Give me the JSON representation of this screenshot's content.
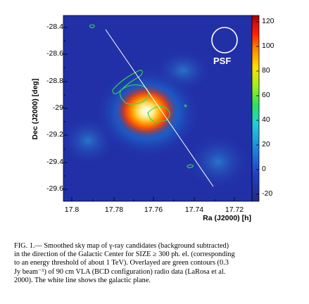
{
  "figure": {
    "ylabel": "Dec (J2000) [deg]",
    "xlabel": "Ra (J2000) [h]",
    "psf_label": "PSF",
    "yticks": [
      "-28.4",
      "-28.6",
      "-28.8",
      "-29",
      "-29.2",
      "-29.4",
      "-29.6"
    ],
    "xticks": [
      "17.8",
      "17.78",
      "17.76",
      "17.74",
      "17.72"
    ],
    "colorbar_ticks": [
      "120",
      "100",
      "80",
      "60",
      "40",
      "20",
      "0",
      "-20"
    ]
  },
  "chart_data": {
    "type": "heatmap",
    "xlabel": "Ra (J2000) [h]",
    "ylabel": "Dec (J2000) [deg]",
    "xlim": [
      17.81,
      17.71
    ],
    "ylim": [
      -29.68,
      -28.35
    ],
    "colorbar_range": [
      -28,
      126
    ],
    "peak": {
      "ra": 17.763,
      "dec": -28.99,
      "value": 126
    },
    "background_value": 5,
    "galactic_plane": [
      [
        17.792,
        -28.39
      ],
      [
        17.737,
        -29.61
      ]
    ],
    "overlays": "green radio contours (90 cm VLA)"
  },
  "caption": {
    "lines": [
      "FIG.  1.— Smoothed sky map of γ-ray candidates (background subtracted)",
      "in the direction of the Galactic Center for SIZE ≥ 300 ph. el. (corresponding",
      "to an energy threshold of about 1 TeV). Overlayed are green contours (0.3",
      "Jy beam⁻¹) of 90 cm VLA (BCD configuration) radio data (LaRosa et al.",
      "2000). The white line shows the galactic plane."
    ]
  },
  "colors": {
    "background": "#2230a8",
    "contour": "#33dd44",
    "plane_line": "#ffffff"
  }
}
